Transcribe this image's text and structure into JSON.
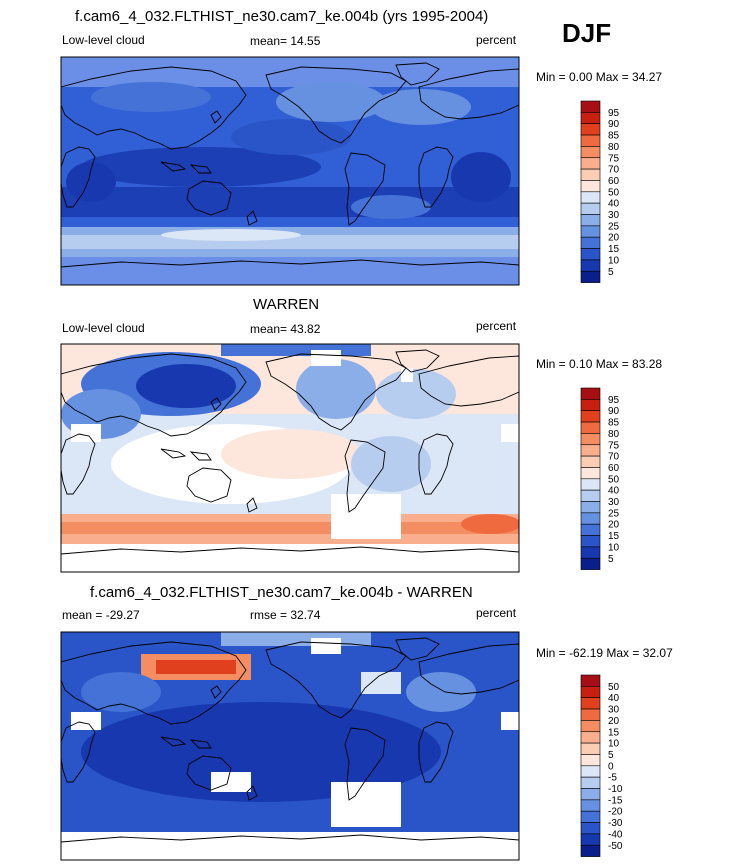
{
  "season": "DJF",
  "colors": {
    "ocean_deep": "#1c3fb5",
    "ocean": "#3160d6",
    "ocean_light": "#6b8fe6",
    "pale": "#bcd0f2",
    "salmon": "#f4a58a",
    "salmon_light": "#f9cbb6",
    "red": "#e44b2a",
    "white": "#ffffff",
    "coast": "#000000"
  },
  "panels": [
    {
      "title": "f.cam6_4_032.FLTHIST_ne30.cam7_ke.004b (yrs 1995-2004)",
      "left_label": "Low-level cloud",
      "center_label": "mean=  14.55",
      "right_label": "percent",
      "minmax": "Min =   0.00 Max =  34.27",
      "colorbar": {
        "labels": [
          "95",
          "90",
          "85",
          "80",
          "75",
          "70",
          "60",
          "50",
          "40",
          "30",
          "25",
          "20",
          "15",
          "10",
          "5"
        ],
        "colors": [
          "#a50f15",
          "#c8200e",
          "#e0401e",
          "#ef6a3f",
          "#f58d63",
          "#f9ae8e",
          "#fbcdb5",
          "#fde7dc",
          "#dbe6f7",
          "#b7cdf0",
          "#8caee8",
          "#6690e0",
          "#4472d6",
          "#2a55c8",
          "#1838b0",
          "#0a1e8c"
        ]
      }
    },
    {
      "title": "WARREN",
      "left_label": "Low-level cloud",
      "center_label": "mean=  43.82",
      "right_label": "percent",
      "minmax": "Min =   0.10 Max =  83.28",
      "colorbar": {
        "labels": [
          "95",
          "90",
          "85",
          "80",
          "75",
          "70",
          "60",
          "50",
          "40",
          "30",
          "25",
          "20",
          "15",
          "10",
          "5"
        ],
        "colors": [
          "#a50f15",
          "#c8200e",
          "#e0401e",
          "#ef6a3f",
          "#f58d63",
          "#f9ae8e",
          "#fbcdb5",
          "#fde7dc",
          "#dbe6f7",
          "#b7cdf0",
          "#8caee8",
          "#6690e0",
          "#4472d6",
          "#2a55c8",
          "#1838b0",
          "#0a1e8c"
        ]
      }
    },
    {
      "title": "f.cam6_4_032.FLTHIST_ne30.cam7_ke.004b - WARREN",
      "left_label": "mean = -29.27",
      "center_label": "rmse =  32.74",
      "right_label": "percent",
      "minmax": "Min = -62.19 Max =  32.07",
      "colorbar": {
        "labels": [
          "50",
          "40",
          "30",
          "20",
          "15",
          "10",
          "5",
          "0",
          "-5",
          "-10",
          "-15",
          "-20",
          "-30",
          "-40",
          "-50"
        ],
        "colors": [
          "#a50f15",
          "#c8200e",
          "#e0401e",
          "#ef6a3f",
          "#f58d63",
          "#f9ae8e",
          "#fbcdb5",
          "#fde7dc",
          "#dbe6f7",
          "#b7cdf0",
          "#8caee8",
          "#6690e0",
          "#4472d6",
          "#2a55c8",
          "#1838b0",
          "#0a1e8c"
        ]
      }
    }
  ]
}
